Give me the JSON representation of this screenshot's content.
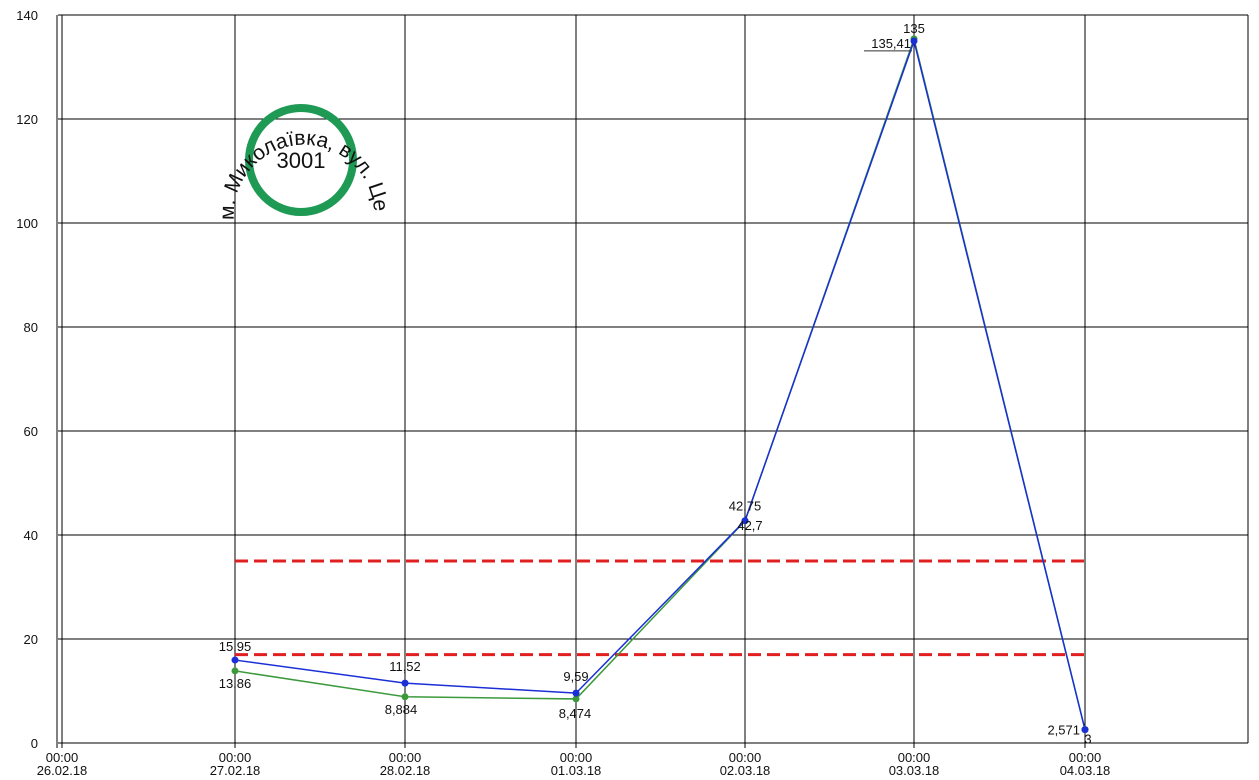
{
  "chart_data": {
    "type": "line",
    "title": "",
    "xlabel": "",
    "ylabel": "",
    "ylim": [
      0,
      140
    ],
    "yticks": [
      0,
      20,
      40,
      60,
      80,
      100,
      120,
      140
    ],
    "grid": true,
    "x_ticks": [
      {
        "time": "00:00",
        "date": "26.02.18"
      },
      {
        "time": "00:00",
        "date": "27.02.18"
      },
      {
        "time": "00:00",
        "date": "28.02.18"
      },
      {
        "time": "00:00",
        "date": "01.03.18"
      },
      {
        "time": "00:00",
        "date": "02.03.18"
      },
      {
        "time": "00:00",
        "date": "03.03.18"
      },
      {
        "time": "00:00",
        "date": "04.03.18"
      }
    ],
    "x_dates": [
      "27.02.18",
      "28.02.18",
      "01.03.18",
      "02.03.18",
      "03.03.18",
      "04.03.18"
    ],
    "series": [
      {
        "color": "#1a2fd6",
        "values": [
          15.95,
          11.52,
          9.59,
          42.75,
          135,
          2.571
        ],
        "labels": [
          "15,95",
          "11,52",
          "9,59",
          "42,75",
          "135",
          "2,571"
        ]
      },
      {
        "color": "#3c9a3c",
        "values": [
          13.86,
          8.884,
          8.474,
          42.7,
          135.41,
          2.571
        ],
        "labels": [
          "13,86",
          "8,884",
          "8,474",
          "42,7",
          "135,41",
          "3"
        ]
      }
    ],
    "thresholds": [
      {
        "value": 35,
        "color": "#e02020",
        "from": "27.02.18",
        "to": "04.03.18"
      },
      {
        "value": 17,
        "color": "#e02020",
        "from": "27.02.18",
        "to": "04.03.18"
      }
    ]
  },
  "stamp": {
    "number": "3001",
    "text": "м. Миколаївка, вул. Центральна, КП",
    "ring_color": "#1e9a55"
  }
}
